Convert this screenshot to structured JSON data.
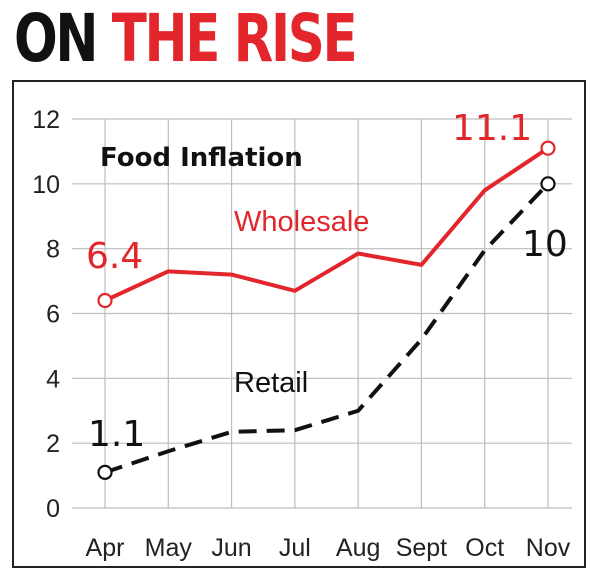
{
  "headline": {
    "part1": "ON",
    "part2": "THE RISE"
  },
  "colors": {
    "wholesale": "#e3262b",
    "retail": "#111111",
    "grid": "#bdbdbd",
    "headline_accent": "#e3262b"
  },
  "chart_data": {
    "type": "line",
    "title": "Food Inflation",
    "xlabel": "",
    "ylabel": "",
    "categories": [
      "Apr",
      "May",
      "Jun",
      "Jul",
      "Aug",
      "Sept",
      "Oct",
      "Nov"
    ],
    "ylim": [
      0,
      12
    ],
    "yticks": [
      0,
      2,
      4,
      6,
      8,
      10,
      12
    ],
    "grid": true,
    "series": [
      {
        "name": "Wholesale",
        "values": [
          6.4,
          7.3,
          7.2,
          6.7,
          7.85,
          7.5,
          9.8,
          11.1
        ],
        "color": "#e3262b",
        "style": "solid"
      },
      {
        "name": "Retail",
        "values": [
          1.1,
          1.75,
          2.35,
          2.4,
          3.0,
          5.2,
          7.95,
          10.0
        ],
        "color": "#111111",
        "style": "dashed"
      }
    ],
    "annotations": [
      {
        "text": "6.4",
        "series": "Wholesale",
        "point": "Apr"
      },
      {
        "text": "11.1",
        "series": "Wholesale",
        "point": "Nov"
      },
      {
        "text": "1.1",
        "series": "Retail",
        "point": "Apr"
      },
      {
        "text": "10",
        "series": "Retail",
        "point": "Nov"
      }
    ]
  }
}
